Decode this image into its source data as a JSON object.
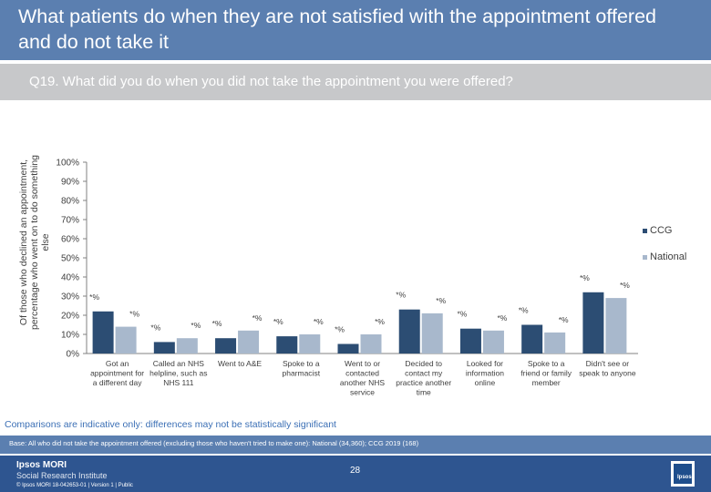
{
  "header": {
    "title": "What patients do when they are not satisfied with the appointment offered and do not take it"
  },
  "question": "Q19. What did you do when you did not take the appointment you were offered?",
  "chart_data": {
    "type": "bar",
    "ylabel": "Of those who declined an appointment, percentage who went on to do something else",
    "ylim": [
      0,
      100
    ],
    "yticks": [
      "0%",
      "10%",
      "20%",
      "30%",
      "40%",
      "50%",
      "60%",
      "70%",
      "80%",
      "90%",
      "100%"
    ],
    "categories": [
      [
        "Got an",
        "appointment for",
        "a different day"
      ],
      [
        "Called an NHS",
        "helpline, such as",
        "NHS 111"
      ],
      [
        "Went to A&E"
      ],
      [
        "Spoke to a",
        "pharmacist"
      ],
      [
        "Went to or",
        "contacted",
        "another NHS",
        "service"
      ],
      [
        "Decided to",
        "contact my",
        "practice another",
        "time"
      ],
      [
        "Looked for",
        "information",
        "online"
      ],
      [
        "Spoke to a",
        "friend or family",
        "member"
      ],
      [
        "Didn't see or",
        "speak to anyone"
      ]
    ],
    "series": [
      {
        "name": "CCG",
        "color": "#2c4d73",
        "values": [
          22,
          6,
          8,
          9,
          5,
          23,
          13,
          15,
          32
        ],
        "labels": [
          "*%",
          "*%",
          "*%",
          "*%",
          "*%",
          "*%",
          "*%",
          "*%",
          "*%"
        ]
      },
      {
        "name": "National",
        "color": "#a8b8cc",
        "values": [
          14,
          8,
          12,
          10,
          10,
          21,
          12,
          11,
          29
        ],
        "labels": [
          "*%",
          "*%",
          "*%",
          "*%",
          "*%",
          "*%",
          "*%",
          "*%",
          "*%"
        ]
      }
    ],
    "legend_position": "right"
  },
  "note": "Comparisons are indicative only: differences may not be statistically significant",
  "base": "Base: All who did not take the appointment offered (excluding those who haven't tried to make one): National (34,360); CCG 2019 (168)",
  "footer": {
    "brand_line1": "Ipsos MORI",
    "brand_line2": "Social Research Institute",
    "copyright": "© Ipsos MORI     18-042653-01 | Version 1 | Public",
    "page_number": "28",
    "logo_text": "Ipsos"
  }
}
